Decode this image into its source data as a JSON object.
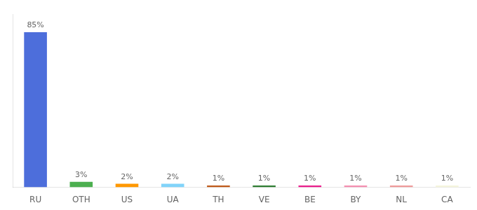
{
  "chart_data": {
    "type": "bar",
    "categories": [
      "RU",
      "OTH",
      "US",
      "UA",
      "TH",
      "VE",
      "BE",
      "BY",
      "NL",
      "CA"
    ],
    "values": [
      85,
      3,
      2,
      2,
      1,
      1,
      1,
      1,
      1,
      1
    ],
    "value_labels": [
      "85%",
      "3%",
      "2%",
      "2%",
      "1%",
      "1%",
      "1%",
      "1%",
      "1%",
      "1%"
    ],
    "colors": [
      "#4d6edb",
      "#4caf50",
      "#ff9800",
      "#81d4fa",
      "#bf5a1a",
      "#2e7d32",
      "#e91e8c",
      "#f48fb1",
      "#ef9a9a",
      "#f5f5dc"
    ],
    "ylim": [
      0,
      95
    ],
    "grid": false,
    "data_labels": true,
    "tick_labels": "x"
  }
}
